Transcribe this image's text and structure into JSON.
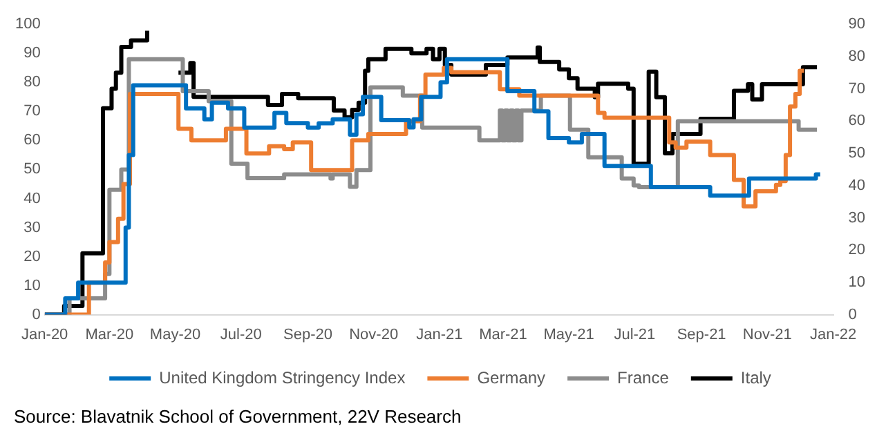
{
  "chart_data": {
    "type": "step",
    "xlim": [
      "2020-01-01",
      "2022-01-01"
    ],
    "xticks": [
      {
        "value": "2020-01-01",
        "label": "Jan-20"
      },
      {
        "value": "2020-03-01",
        "label": "Mar-20"
      },
      {
        "value": "2020-05-01",
        "label": "May-20"
      },
      {
        "value": "2020-07-01",
        "label": "Jul-20"
      },
      {
        "value": "2020-09-01",
        "label": "Sep-20"
      },
      {
        "value": "2020-11-01",
        "label": "Nov-20"
      },
      {
        "value": "2021-01-01",
        "label": "Jan-21"
      },
      {
        "value": "2021-03-01",
        "label": "Mar-21"
      },
      {
        "value": "2021-05-01",
        "label": "May-21"
      },
      {
        "value": "2021-07-01",
        "label": "Jul-21"
      },
      {
        "value": "2021-09-01",
        "label": "Sep-21"
      },
      {
        "value": "2021-11-01",
        "label": "Nov-21"
      },
      {
        "value": "2022-01-01",
        "label": "Jan-22"
      }
    ],
    "ylim": [
      0,
      100
    ],
    "yticks": [
      0,
      10,
      20,
      30,
      40,
      50,
      60,
      70,
      80,
      90,
      100
    ],
    "y2lim": [
      0,
      90
    ],
    "y2ticks": [
      0,
      10,
      20,
      30,
      40,
      50,
      60,
      70,
      80,
      90
    ],
    "grid": false,
    "legend": "bottom",
    "marker": "none",
    "line_style": "solid",
    "annotations": [
      "Source:  Blavatnik School of Government,  22V Research"
    ],
    "series": [
      {
        "name": "United Kingdom Stringency Index",
        "color": "#0070c0",
        "x": [
          "2020-01-01",
          "2020-01-20",
          "2020-02-01",
          "2020-03-12",
          "2020-03-16",
          "2020-03-19",
          "2020-03-23",
          "2020-05-11",
          "2020-05-28",
          "2020-06-04",
          "2020-06-19",
          "2020-07-04",
          "2020-08-01",
          "2020-08-12",
          "2020-09-01",
          "2020-09-11",
          "2020-09-24",
          "2020-10-10",
          "2020-10-16",
          "2020-10-22",
          "2020-11-08",
          "2020-12-04",
          "2020-12-08",
          "2020-12-15",
          "2021-01-02",
          "2021-01-08",
          "2021-03-05",
          "2021-03-30",
          "2021-04-12",
          "2021-05-01",
          "2021-05-13",
          "2021-06-03",
          "2021-07-16",
          "2021-09-09",
          "2021-10-15",
          "2021-12-16",
          "2021-12-20"
        ],
        "values": [
          0,
          5.6,
          11,
          11,
          30,
          55,
          79,
          71,
          67.3,
          73,
          71,
          64.4,
          69.5,
          66,
          64.4,
          65.9,
          67.3,
          62,
          69,
          75,
          67,
          64.5,
          67.3,
          75,
          80,
          88,
          77,
          70,
          60.8,
          59.3,
          62.2,
          51.2,
          43.9,
          41,
          46.9,
          48.3,
          48.3
        ]
      },
      {
        "name": "Germany",
        "color": "#ed7d31",
        "x": [
          "2020-01-01",
          "2020-02-11",
          "2020-02-26",
          "2020-03-01",
          "2020-03-09",
          "2020-03-14",
          "2020-03-20",
          "2020-05-04",
          "2020-05-16",
          "2020-06-17",
          "2020-07-06",
          "2020-07-27",
          "2020-08-10",
          "2020-08-18",
          "2020-09-04",
          "2020-10-12",
          "2020-10-27",
          "2020-12-01",
          "2020-12-14",
          "2020-12-19",
          "2021-01-05",
          "2021-01-12",
          "2021-02-26",
          "2021-03-16",
          "2021-05-28",
          "2021-06-03",
          "2021-08-02",
          "2021-08-08",
          "2021-08-18",
          "2021-09-09",
          "2021-10-01",
          "2021-10-10",
          "2021-10-21",
          "2021-11-09",
          "2021-11-13",
          "2021-11-18",
          "2021-11-22",
          "2021-11-27",
          "2021-12-01",
          "2021-12-05"
        ],
        "values": [
          0,
          11,
          18,
          25,
          33,
          45,
          76,
          64,
          60,
          64,
          55.5,
          58,
          57,
          59.3,
          49.8,
          60,
          62.2,
          66.6,
          75.4,
          82.7,
          85,
          83.5,
          77.6,
          75.4,
          69.5,
          67.8,
          59.3,
          57.5,
          59.6,
          55,
          46.4,
          37.3,
          42.5,
          44.7,
          46,
          55,
          71.7,
          76,
          84,
          84
        ]
      },
      {
        "name": "France",
        "color": "#8c8c8c",
        "x": [
          "2020-01-01",
          "2020-01-24",
          "2020-02-26",
          "2020-03-01",
          "2020-03-12",
          "2020-03-19",
          "2020-05-08",
          "2020-06-01",
          "2020-06-22",
          "2020-07-07",
          "2020-08-10",
          "2020-09-22",
          "2020-09-24",
          "2020-10-10",
          "2020-10-16",
          "2020-10-29",
          "2020-11-28",
          "2020-12-16",
          "2021-02-07",
          "2021-02-26",
          "2021-02-28",
          "2021-03-03",
          "2021-03-05",
          "2021-03-08",
          "2021-03-10",
          "2021-03-13",
          "2021-03-15",
          "2021-03-18",
          "2021-04-05",
          "2021-05-02",
          "2021-05-19",
          "2021-06-19",
          "2021-06-30",
          "2021-07-05",
          "2021-08-10",
          "2021-11-30",
          "2021-12-17"
        ],
        "values": [
          0,
          5.6,
          14,
          43,
          50,
          88,
          77,
          73.5,
          52,
          47,
          48.3,
          46.9,
          48.3,
          44,
          49.8,
          78.3,
          75.4,
          64.4,
          60,
          70.3,
          60,
          70.3,
          60,
          70.3,
          60,
          70.3,
          60,
          70.3,
          75.4,
          63.7,
          54.2,
          46.9,
          44.5,
          43.9,
          66.6,
          63.7,
          63.7
        ]
      },
      {
        "name": "Italy",
        "color": "#000000",
        "axis": "y2",
        "x": [
          "2020-01-01",
          "2020-01-19",
          "2020-02-05",
          "2020-02-24",
          "2020-03-03",
          "2020-03-07",
          "2020-03-12",
          "2020-03-21",
          "2020-04-05",
          "2020-04-08",
          "2020-05-04",
          "2020-05-15",
          "2020-05-18",
          "2020-07-26",
          "2020-08-08",
          "2020-08-23",
          "2020-09-25",
          "2020-10-05",
          "2020-10-12",
          "2020-10-18",
          "2020-10-24",
          "2020-10-27",
          "2020-11-12",
          "2020-12-06",
          "2020-12-20",
          "2020-12-26",
          "2021-01-01",
          "2021-01-06",
          "2021-01-12",
          "2021-02-13",
          "2021-03-05",
          "2021-04-02",
          "2021-04-04",
          "2021-04-22",
          "2021-05-01",
          "2021-05-09",
          "2021-05-25",
          "2021-05-28",
          "2021-06-25",
          "2021-06-30",
          "2021-07-14",
          "2021-07-21",
          "2021-07-29",
          "2021-08-05",
          "2021-08-31",
          "2021-10-01",
          "2021-10-14",
          "2021-10-18",
          "2021-10-27",
          "2021-12-04",
          "2021-12-17"
        ],
        "values": [
          0,
          2.7,
          19,
          64,
          70,
          75,
          83,
          85,
          88,
          null,
          75,
          78,
          67.5,
          65,
          68.4,
          67.1,
          63.3,
          61.2,
          63.5,
          65.7,
          75.6,
          79.2,
          82.4,
          81,
          82.4,
          79.2,
          82.4,
          77.4,
          74.4,
          77.4,
          79.7,
          82.8,
          78.3,
          76,
          73.3,
          70,
          67.4,
          71.6,
          70,
          46.8,
          75.3,
          67.4,
          50,
          56,
          60.7,
          69.4,
          71.4,
          66.7,
          71.4,
          76.7,
          76.7
        ]
      }
    ]
  }
}
